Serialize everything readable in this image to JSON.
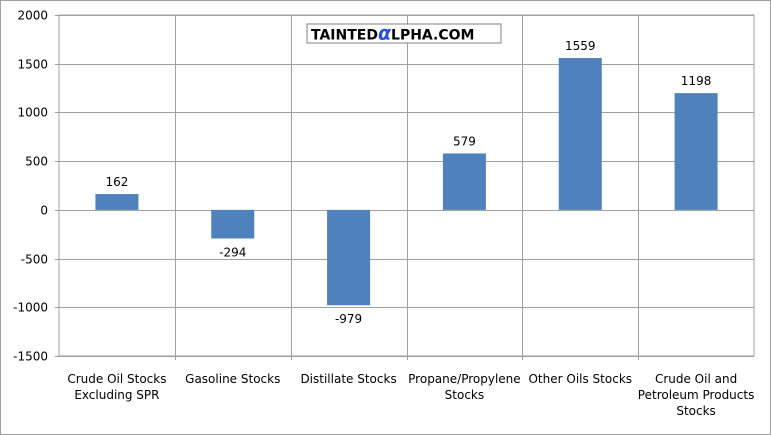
{
  "watermark": {
    "part1": "TAINTED",
    "part2": "α",
    "part3": "LPHA.COM",
    "accent_color": "#2b4fd8"
  },
  "chart_data": {
    "type": "bar",
    "title": "",
    "xlabel": "",
    "ylabel": "",
    "categories": [
      [
        "Crude Oil Stocks",
        "Excluding SPR"
      ],
      [
        "Gasoline Stocks"
      ],
      [
        "Distillate  Stocks"
      ],
      [
        "Propane/Propylene",
        "Stocks"
      ],
      [
        "Other Oils Stocks"
      ],
      [
        "Crude Oil and",
        "Petroleum Products",
        "Stocks"
      ]
    ],
    "values": [
      162,
      -294,
      -979,
      579,
      1559,
      1198
    ],
    "value_labels": [
      "162",
      "-294",
      "-979",
      "579",
      "1559",
      "1198"
    ],
    "ylim": [
      -1500,
      2000
    ],
    "yticks": [
      2000,
      1500,
      1000,
      500,
      0,
      -500,
      -1000,
      -1500
    ],
    "ytick_labels": [
      "2000",
      "1500",
      "1000",
      "500",
      "0",
      "-500",
      "-1000",
      "-1500"
    ],
    "grid": true,
    "bar_color": "#4f81bd",
    "grid_color": "#a0a0a0"
  }
}
